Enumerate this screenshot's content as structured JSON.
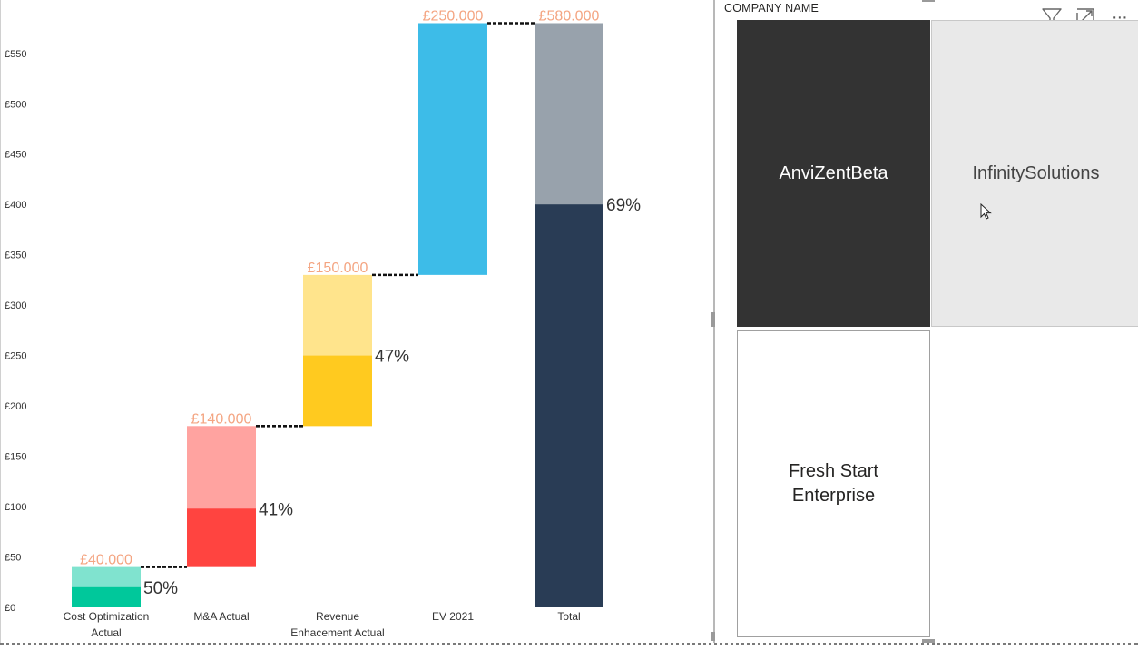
{
  "chart_data": {
    "type": "bar",
    "subtype": "stacked-waterfall",
    "categories": [
      "Cost Optimization Actual",
      "M&A Actual",
      "Revenue Enhacement Actual",
      "EV 2021",
      "Total"
    ],
    "category_lines": [
      [
        "Cost Optimization",
        "Actual"
      ],
      [
        "M&A Actual"
      ],
      [
        "Revenue",
        "Enhacement Actual"
      ],
      [
        "EV 2021"
      ],
      [
        "Total"
      ]
    ],
    "bars": [
      {
        "base": 0,
        "total": 40,
        "actual": 20,
        "value_label": "£40.000",
        "pct_label": "50%",
        "color_light": "#80e3cf",
        "color_dark": "#00c89b"
      },
      {
        "base": 40,
        "total": 140,
        "actual": 58,
        "value_label": "£140.000",
        "pct_label": "41%",
        "color_light": "#ffa3a0",
        "color_dark": "#ff4440"
      },
      {
        "base": 180,
        "total": 150,
        "actual": 70,
        "value_label": "£150.000",
        "pct_label": "47%",
        "color_light": "#ffe48c",
        "color_dark": "#ffca1f"
      },
      {
        "base": 330,
        "total": 250,
        "actual": null,
        "value_label": "£250.000",
        "pct_label": "",
        "color_light": "#3dbce8",
        "color_dark": "#3dbce8"
      },
      {
        "base": 0,
        "total": 580,
        "actual": 400,
        "value_label": "£580.000",
        "pct_label": "69%",
        "color_light": "#98a2ac",
        "color_dark": "#293c55"
      }
    ],
    "y_ticks": [
      0,
      50,
      100,
      150,
      200,
      250,
      300,
      350,
      400,
      450,
      500,
      550
    ],
    "y_tick_labels": [
      "£0",
      "£50",
      "£100",
      "£150",
      "£200",
      "£250",
      "£300",
      "£350",
      "£400",
      "£450",
      "£500",
      "£550"
    ],
    "ylim": [
      0,
      580
    ],
    "grid": false,
    "connector_style": "dashed"
  },
  "slicer": {
    "header": "COMPANY NAME",
    "tiles": [
      {
        "label": "AnviZentBeta",
        "state": "selected"
      },
      {
        "label": "InfinitySolutions",
        "state": "hovered"
      },
      {
        "label": "Fresh Start Enterprise",
        "state": "normal"
      }
    ]
  },
  "toolbar": {
    "icons": [
      "filter-icon",
      "focus-mode-icon",
      "more-options-icon"
    ],
    "more_glyph": "···"
  }
}
